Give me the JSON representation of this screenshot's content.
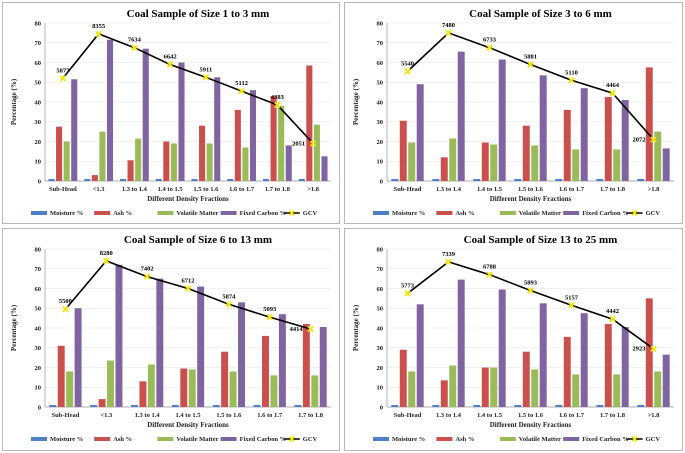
{
  "colors": {
    "moisture": "#4e7fc4",
    "ash": "#c9504d",
    "volatile": "#9bbb59",
    "fixed_carbon": "#8064a2",
    "gcv_line": "#000000",
    "gcv_marker": "#f2e600"
  },
  "chart_data": [
    {
      "type": "bar",
      "title": "Coal Sample of Size 1 to 3 mm",
      "xlabel": "Different Density Fractions",
      "ylabel": "Percentage (%)",
      "ylim": [
        0,
        80
      ],
      "yticks": [
        0,
        10,
        20,
        30,
        40,
        50,
        60,
        70,
        80
      ],
      "grid": true,
      "legend_placement": "bottom",
      "categories": [
        "Sub-Head",
        "<1.3",
        "1.3 to 1.4",
        "1.4 to 1.5",
        "1.5 to 1.6",
        "1.6 to 1.7",
        "1.7 to 1.8",
        ">1.8"
      ],
      "series": [
        {
          "name": "Moisture %",
          "type": "bar",
          "color_key": "moisture",
          "values": [
            1,
            1,
            1,
            1,
            1,
            1,
            1,
            1
          ]
        },
        {
          "name": "Ash %",
          "type": "bar",
          "color_key": "ash",
          "values": [
            27.5,
            3,
            10.5,
            20,
            28,
            36,
            43,
            58.5
          ]
        },
        {
          "name": "Volatile Matter %",
          "type": "bar",
          "color_key": "volatile",
          "values": [
            20,
            25,
            21.5,
            19,
            19,
            17,
            38,
            28.5
          ]
        },
        {
          "name": "Fixed Carbon %",
          "type": "bar",
          "color_key": "fixed_carbon",
          "values": [
            51.5,
            71.5,
            67,
            60,
            52.5,
            46,
            18,
            12.5
          ]
        },
        {
          "name": "GCV",
          "type": "line",
          "color_key": "gcv_line",
          "values": [
            52,
            74.5,
            67.5,
            59,
            52.5,
            45.5,
            38.5,
            19
          ],
          "labels": [
            "5877",
            "8355",
            "7634",
            "6642",
            "5911",
            "5112",
            "4383",
            "2051"
          ]
        }
      ]
    },
    {
      "type": "bar",
      "title": "Coal Sample of Size 3 to 6 mm",
      "xlabel": "Different Density Fractions",
      "ylabel": "Percentage (%)",
      "ylim": [
        0,
        80
      ],
      "yticks": [
        0,
        10,
        20,
        30,
        40,
        50,
        60,
        70,
        80
      ],
      "grid": true,
      "legend_placement": "bottom",
      "categories": [
        "Sub-Head",
        "1.3 to 1.4",
        "1.4 to 1.5",
        "1.5 to 1.6",
        "1.6 to 1.7",
        "1.7 to 1.8",
        ">1.8"
      ],
      "series": [
        {
          "name": "Moisture %",
          "type": "bar",
          "color_key": "moisture",
          "values": [
            1,
            1,
            1,
            1,
            1,
            1,
            1
          ]
        },
        {
          "name": "Ash %",
          "type": "bar",
          "color_key": "ash",
          "values": [
            30.5,
            12,
            19.5,
            28,
            36,
            42.5,
            57.5
          ]
        },
        {
          "name": "Volatile Matter %",
          "type": "bar",
          "color_key": "volatile",
          "values": [
            19.5,
            21.5,
            18.5,
            18,
            16,
            16,
            25
          ]
        },
        {
          "name": "Fixed Carbon %",
          "type": "bar",
          "color_key": "fixed_carbon",
          "values": [
            49,
            65.5,
            61.5,
            53.5,
            47,
            41,
            16.5
          ]
        },
        {
          "name": "GCV",
          "type": "line",
          "color_key": "gcv_line",
          "values": [
            55.5,
            75,
            67.5,
            59,
            51,
            44.5,
            21
          ],
          "labels": [
            "5540",
            "7480",
            "6733",
            "5881",
            "5110",
            "4464",
            "2072"
          ]
        }
      ]
    },
    {
      "type": "bar",
      "title": "Coal Sample of Size 6 to 13 mm",
      "xlabel": "Different Density Fractions",
      "ylabel": "Percentage (%)",
      "ylim": [
        0,
        80
      ],
      "yticks": [
        0,
        10,
        20,
        30,
        40,
        50,
        60,
        70,
        80
      ],
      "grid": true,
      "legend_placement": "bottom",
      "categories": [
        "Sub-Head",
        "<1.3",
        "1.3 to 1.4",
        "1.4 to 1.5",
        "1.5 to 1.6",
        "1.6 to 1.7",
        "1.7 to 1.8"
      ],
      "series": [
        {
          "name": "Moisture %",
          "type": "bar",
          "color_key": "moisture",
          "values": [
            1,
            1,
            1,
            1,
            1,
            1,
            1
          ]
        },
        {
          "name": "Ash %",
          "type": "bar",
          "color_key": "ash",
          "values": [
            31,
            4,
            13,
            19.5,
            28,
            36,
            42
          ]
        },
        {
          "name": "Volatile Matter %",
          "type": "bar",
          "color_key": "volatile",
          "values": [
            18,
            23.5,
            21.5,
            19,
            18,
            16,
            16
          ]
        },
        {
          "name": "Fixed Carbon %",
          "type": "bar",
          "color_key": "fixed_carbon",
          "values": [
            50,
            72,
            65,
            61,
            53,
            47,
            40.5
          ]
        },
        {
          "name": "GCV",
          "type": "line",
          "color_key": "gcv_line",
          "values": [
            49.5,
            74,
            66,
            60,
            52,
            45.5,
            39.5
          ],
          "labels": [
            "5500",
            "8280",
            "7402",
            "6712",
            "5874",
            "5093",
            "4414"
          ]
        }
      ]
    },
    {
      "type": "bar",
      "title": "Coal Sample of Size 13 to 25 mm",
      "xlabel": "Different Density Fractions",
      "ylabel": "Percentage (%)",
      "ylim": [
        0,
        80
      ],
      "yticks": [
        0,
        10,
        20,
        30,
        40,
        50,
        60,
        70,
        80
      ],
      "grid": true,
      "legend_placement": "bottom",
      "categories": [
        "Sub-Head",
        "1.3 to 1.4",
        "1.4 to 1.5",
        "1.5 to 1.6",
        "1.6 to 1.7",
        "1.7 to 1.8",
        ">1.8"
      ],
      "series": [
        {
          "name": "Moisture %",
          "type": "bar",
          "color_key": "moisture",
          "values": [
            1,
            1,
            1,
            1,
            1,
            1,
            1
          ]
        },
        {
          "name": "Ash %",
          "type": "bar",
          "color_key": "ash",
          "values": [
            29,
            13.5,
            20,
            28,
            35.5,
            42,
            55
          ]
        },
        {
          "name": "Volatile Matter %",
          "type": "bar",
          "color_key": "volatile",
          "values": [
            18,
            21,
            20,
            19,
            16.5,
            16.5,
            18
          ]
        },
        {
          "name": "Fixed Carbon %",
          "type": "bar",
          "color_key": "fixed_carbon",
          "values": [
            52,
            64.5,
            59.5,
            52.5,
            47.5,
            40.5,
            26.5
          ]
        },
        {
          "name": "GCV",
          "type": "line",
          "color_key": "gcv_line",
          "values": [
            57.5,
            73.5,
            67,
            59,
            51.5,
            44.5,
            29.5
          ],
          "labels": [
            "5773",
            "7339",
            "6788",
            "5893",
            "5157",
            "4442",
            "2923"
          ]
        }
      ]
    }
  ]
}
